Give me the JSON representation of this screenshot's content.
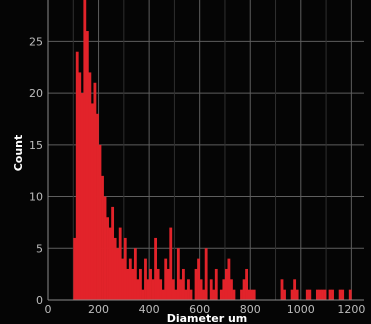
{
  "chart_data": {
    "type": "bar",
    "title": "",
    "xlabel": "Diameter um",
    "ylabel": "Count",
    "xlim": [
      0,
      1250
    ],
    "ylim": [
      0,
      29
    ],
    "x_ticks": [
      0,
      200,
      400,
      600,
      800,
      1000,
      1200
    ],
    "y_ticks": [
      0,
      5,
      10,
      15,
      20,
      25
    ],
    "grid": true,
    "bin_width": 10,
    "bin_starts": [
      100,
      110,
      120,
      130,
      140,
      150,
      160,
      170,
      180,
      190,
      200,
      210,
      220,
      230,
      240,
      250,
      260,
      270,
      280,
      290,
      300,
      310,
      320,
      330,
      340,
      350,
      360,
      370,
      380,
      390,
      400,
      410,
      420,
      430,
      440,
      450,
      460,
      470,
      480,
      490,
      500,
      510,
      520,
      530,
      540,
      550,
      560,
      570,
      580,
      590,
      600,
      610,
      620,
      630,
      640,
      650,
      660,
      670,
      680,
      690,
      700,
      710,
      720,
      730,
      740,
      750,
      760,
      770,
      780,
      790,
      800,
      810,
      820,
      830,
      840,
      850,
      860,
      870,
      880,
      890,
      900,
      910,
      920,
      930,
      940,
      950,
      960,
      970,
      980,
      990,
      1000,
      1010,
      1020,
      1030,
      1040,
      1050,
      1060,
      1070,
      1080,
      1090,
      1100,
      1110,
      1120,
      1130,
      1140,
      1150,
      1160,
      1170,
      1180,
      1190,
      1200
    ],
    "counts": [
      6,
      24,
      22,
      20,
      29,
      26,
      22,
      19,
      21,
      18,
      15,
      12,
      10,
      8,
      7,
      9,
      6,
      5,
      7,
      4,
      6,
      3,
      4,
      3,
      5,
      2,
      3,
      1,
      4,
      2,
      3,
      2,
      6,
      3,
      2,
      1,
      4,
      3,
      7,
      2,
      1,
      5,
      2,
      3,
      1,
      2,
      1,
      0,
      3,
      4,
      2,
      1,
      5,
      0,
      2,
      1,
      3,
      0,
      1,
      2,
      3,
      4,
      2,
      1,
      0,
      0,
      1,
      2,
      3,
      1,
      1,
      1,
      0,
      0,
      0,
      0,
      0,
      0,
      0,
      0,
      0,
      0,
      2,
      1,
      0,
      0,
      1,
      2,
      1,
      0,
      0,
      0,
      1,
      1,
      0,
      0,
      1,
      1,
      1,
      1,
      0,
      1,
      1,
      0,
      0,
      1,
      1,
      0,
      0,
      1,
      0
    ],
    "colors": {
      "bar": "#e2232a",
      "background": "#050505",
      "grid": "#5e5e5e",
      "text": "#bdbdbd"
    }
  }
}
